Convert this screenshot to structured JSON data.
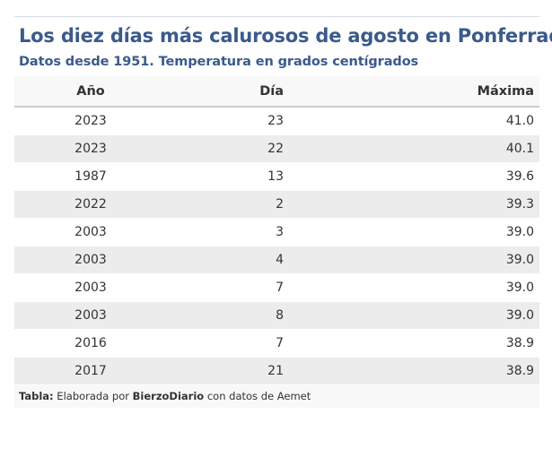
{
  "chart_data": {
    "type": "table",
    "title": "Los diez días más calurosos de agosto en Ponferrada",
    "subtitle": "Datos desde 1951. Temperatura en grados centígrados",
    "columns": [
      "Año",
      "Día",
      "Máxima"
    ],
    "rows": [
      [
        "2023",
        "23",
        "41.0"
      ],
      [
        "2023",
        "22",
        "40.1"
      ],
      [
        "1987",
        "13",
        "39.6"
      ],
      [
        "2022",
        "2",
        "39.3"
      ],
      [
        "2003",
        "3",
        "39.0"
      ],
      [
        "2003",
        "4",
        "39.0"
      ],
      [
        "2003",
        "7",
        "39.0"
      ],
      [
        "2003",
        "8",
        "39.0"
      ],
      [
        "2016",
        "7",
        "38.9"
      ],
      [
        "2017",
        "21",
        "38.9"
      ]
    ]
  },
  "footer": {
    "label": "Tabla:",
    "text1": " Elaborada por ",
    "source": "BierzoDiario",
    "text2": " con datos de Aemet"
  }
}
